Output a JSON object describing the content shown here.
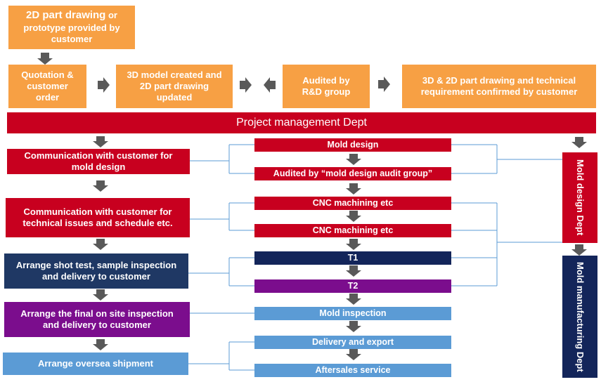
{
  "top": {
    "drawing_box": {
      "line1": "2D part drawing",
      "line1_rest": " or",
      "line2": "prototype provided by customer"
    },
    "quotation": "Quotation & customer order",
    "model": "3D model created and 2D part drawing updated",
    "audited_rd": "Audited by R&D group",
    "confirmed": "3D & 2D part drawing and technical requirement confirmed by customer"
  },
  "banner": "Project management Dept",
  "left": {
    "comm_design": "Communication  with customer for mold design",
    "comm_technical": "Communication  with customer for technical issues and schedule etc.",
    "shot_test": "Arrange shot test, sample inspection and delivery to customer",
    "final_inspection": "Arrange the final on site inspection and delivery to customer",
    "shipment": "Arrange oversea shipment"
  },
  "center": {
    "mold_design": "Mold design",
    "audit_group": "Audited by “mold design audit group”",
    "cnc1": "CNC machining etc",
    "cnc2": "CNC machining  etc",
    "t1": "T1",
    "t2": "T2",
    "mold_inspection": "Mold inspection",
    "delivery": "Delivery and export",
    "aftersales": "Aftersales service"
  },
  "right": {
    "mold_design_dept": "Mold design Dept",
    "manufacturing_dept": "Mold manufacturing Dept"
  },
  "colors": {
    "orange": "#f7a044",
    "red": "#c8001f",
    "navy": "#1f3864",
    "purple": "#7b0d8d",
    "blue": "#5b9bd5",
    "arrow": "#595959",
    "connector": "#5b9bd5"
  }
}
